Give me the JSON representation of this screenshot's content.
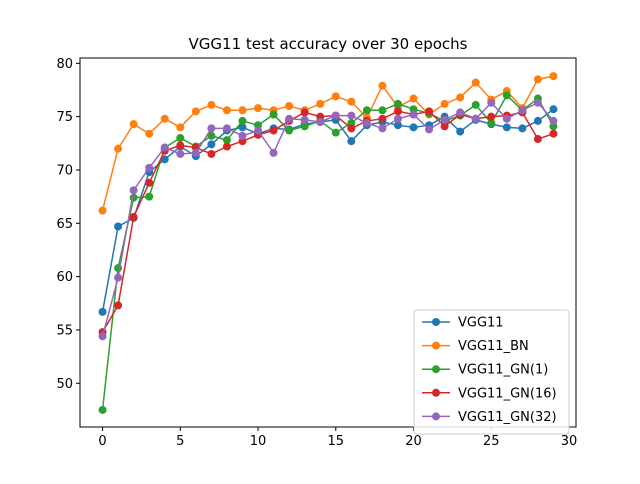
{
  "chart_data": {
    "type": "line",
    "title": "VGG11 test accuracy over 30 epochs",
    "xlabel": "",
    "ylabel": "",
    "xlim": [
      -1.45,
      30.45
    ],
    "ylim": [
      45.9,
      80.5
    ],
    "xticks": [
      0,
      5,
      10,
      15,
      20,
      25,
      30
    ],
    "yticks": [
      50,
      55,
      60,
      65,
      70,
      75,
      80
    ],
    "grid": false,
    "legend_position": "lower-right",
    "x": [
      0,
      1,
      2,
      3,
      4,
      5,
      6,
      7,
      8,
      9,
      10,
      11,
      12,
      13,
      14,
      15,
      16,
      17,
      18,
      19,
      20,
      21,
      22,
      23,
      24,
      25,
      26,
      27,
      28,
      29
    ],
    "series": [
      {
        "name": "VGG11",
        "color": "#1f77b4",
        "values": [
          56.7,
          64.7,
          65.5,
          69.8,
          71.0,
          72.2,
          71.3,
          72.4,
          73.7,
          74.0,
          73.4,
          73.9,
          73.8,
          74.3,
          74.5,
          74.7,
          72.7,
          74.2,
          74.5,
          74.2,
          74.0,
          74.2,
          75.0,
          73.6,
          74.7,
          74.3,
          74.0,
          73.9,
          74.6,
          75.7
        ]
      },
      {
        "name": "VGG11_BN",
        "color": "#ff7f0e",
        "values": [
          66.2,
          72.0,
          74.3,
          73.4,
          74.8,
          74.0,
          75.5,
          76.1,
          75.6,
          75.6,
          75.8,
          75.6,
          76.0,
          75.6,
          76.2,
          76.9,
          76.4,
          74.9,
          77.9,
          75.9,
          76.7,
          75.2,
          76.2,
          76.8,
          78.2,
          76.6,
          77.4,
          75.8,
          78.5,
          78.8
        ]
      },
      {
        "name": "VGG11_GN(1)",
        "color": "#2ca02c",
        "values": [
          47.5,
          60.8,
          67.4,
          67.5,
          72.1,
          73.0,
          72.2,
          73.2,
          72.8,
          74.6,
          74.2,
          75.2,
          73.7,
          74.1,
          74.6,
          73.5,
          74.4,
          75.6,
          75.6,
          76.2,
          75.7,
          75.3,
          74.6,
          75.1,
          76.1,
          74.4,
          77.0,
          75.6,
          76.7,
          74.1
        ]
      },
      {
        "name": "VGG11_GN(16)",
        "color": "#d62728",
        "values": [
          54.8,
          57.3,
          65.6,
          68.8,
          71.8,
          72.3,
          72.1,
          71.5,
          72.2,
          72.7,
          73.3,
          73.7,
          74.6,
          75.4,
          75.0,
          75.1,
          73.9,
          74.6,
          74.8,
          75.5,
          75.2,
          75.5,
          74.1,
          75.2,
          74.8,
          75.0,
          75.1,
          75.4,
          72.9,
          73.4
        ]
      },
      {
        "name": "VGG11_GN(32)",
        "color": "#9467bd",
        "values": [
          54.4,
          59.9,
          68.1,
          70.2,
          72.1,
          71.5,
          71.6,
          73.9,
          73.9,
          73.2,
          73.7,
          71.6,
          74.8,
          74.7,
          74.5,
          75.1,
          75.1,
          74.4,
          73.9,
          74.8,
          75.2,
          73.8,
          74.7,
          75.4,
          74.8,
          76.3,
          74.8,
          75.6,
          76.3,
          74.6
        ]
      }
    ]
  }
}
